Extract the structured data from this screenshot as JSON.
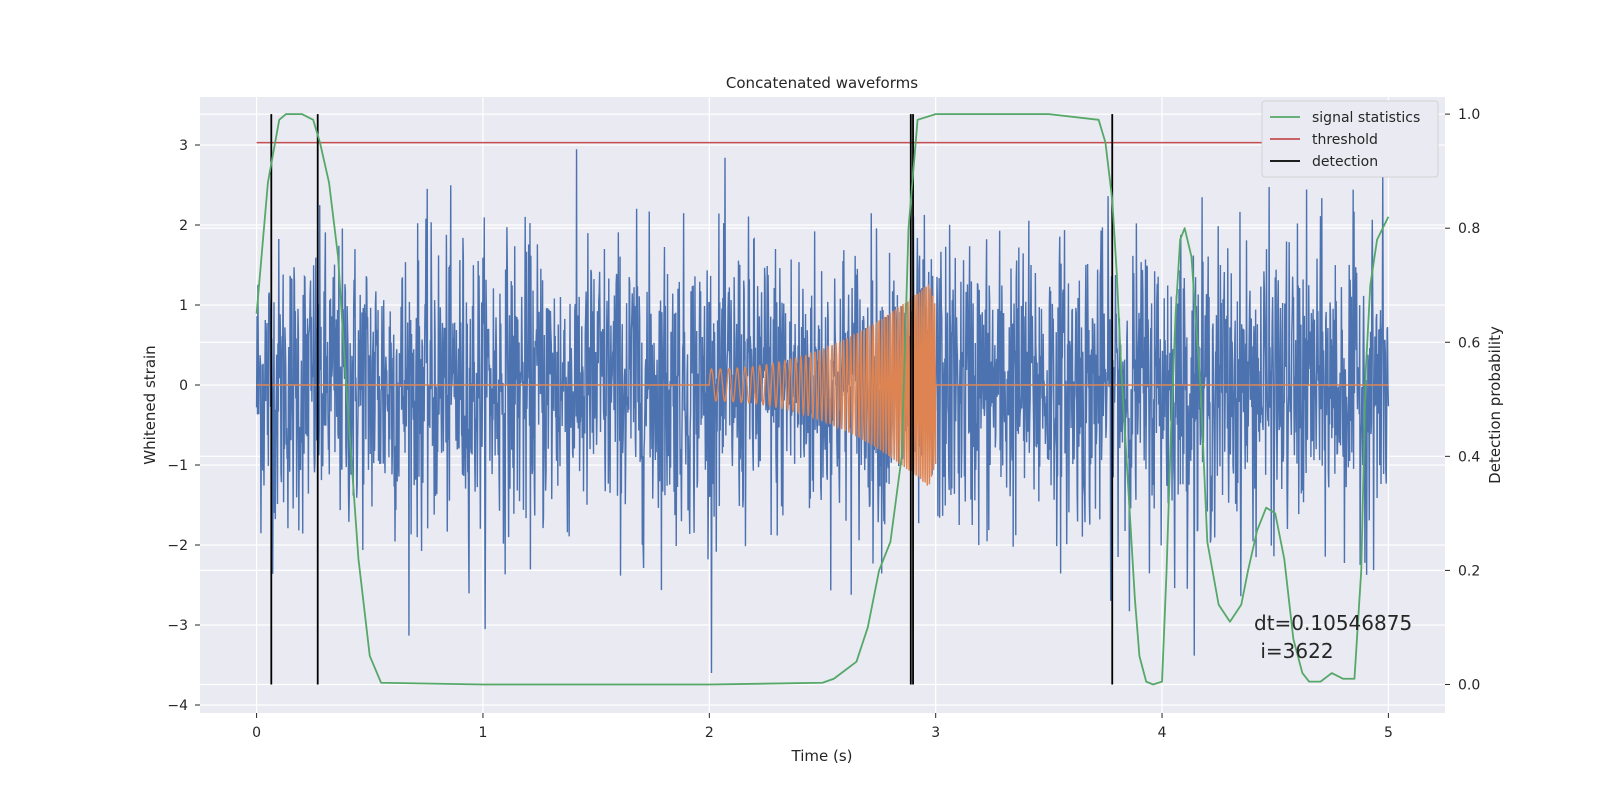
{
  "chart_data": {
    "type": "line",
    "title": "Concatenated waveforms",
    "xlabel": "Time (s)",
    "ylabel": "Whitened strain",
    "y2label": "Detection probability",
    "xlim": [
      -0.25,
      5.25
    ],
    "ylim": [
      -4.1,
      3.6
    ],
    "y2lim": [
      -0.05,
      1.03
    ],
    "x_ticks": [
      0,
      1,
      2,
      3,
      4,
      5
    ],
    "y_ticks": [
      -4,
      -3,
      -2,
      -1,
      0,
      1,
      2,
      3
    ],
    "y2_ticks": [
      0.0,
      0.2,
      0.4,
      0.6,
      0.8,
      1.0
    ],
    "x_tick_labels": [
      "0",
      "1",
      "2",
      "3",
      "4",
      "5"
    ],
    "y_tick_labels": [
      "−4",
      "−3",
      "−2",
      "−1",
      "0",
      "1",
      "2",
      "3"
    ],
    "y2_tick_labels": [
      "0.0",
      "0.2",
      "0.4",
      "0.6",
      "0.8",
      "1.0"
    ],
    "grid": true,
    "legend_position": "top-right",
    "background_color": "#eaeaf2",
    "series": [
      {
        "name": "",
        "axis": "left",
        "color": "#4c72b0",
        "description_values": "whitened noisy strain, roughly in [-3.6, 3.3]",
        "x_range": [
          0,
          5
        ]
      },
      {
        "name": "",
        "axis": "left",
        "color": "#dd8452",
        "chirp": {
          "start": 2.0,
          "end": 3.0,
          "amp_start": 0.2,
          "amp_end": 1.35,
          "f_start": 25,
          "f_end": 110
        }
      },
      {
        "name": "signal statistics",
        "axis": "right",
        "color": "#55a868",
        "x": [
          0.0,
          0.05,
          0.1,
          0.13,
          0.2,
          0.25,
          0.28,
          0.32,
          0.36,
          0.4,
          0.45,
          0.5,
          0.55,
          1.0,
          2.0,
          2.5,
          2.55,
          2.6,
          2.65,
          2.7,
          2.75,
          2.8,
          2.85,
          2.88,
          2.92,
          3.0,
          3.5,
          3.72,
          3.75,
          3.78,
          3.8,
          3.82,
          3.85,
          3.88,
          3.9,
          3.93,
          3.96,
          4.0,
          4.02,
          4.04,
          4.06,
          4.08,
          4.1,
          4.13,
          4.17,
          4.2,
          4.25,
          4.3,
          4.35,
          4.38,
          4.42,
          4.46,
          4.5,
          4.54,
          4.58,
          4.62,
          4.65,
          4.7,
          4.75,
          4.8,
          4.85,
          4.88,
          4.9,
          4.92,
          4.95,
          5.0
        ],
        "values": [
          0.65,
          0.88,
          0.99,
          1.0,
          1.0,
          0.99,
          0.95,
          0.88,
          0.75,
          0.5,
          0.22,
          0.05,
          0.003,
          0.0,
          0.0,
          0.003,
          0.01,
          0.025,
          0.04,
          0.1,
          0.2,
          0.25,
          0.4,
          0.8,
          0.99,
          1.0,
          1.0,
          0.99,
          0.95,
          0.85,
          0.72,
          0.55,
          0.35,
          0.15,
          0.05,
          0.005,
          0.0,
          0.005,
          0.2,
          0.45,
          0.65,
          0.78,
          0.8,
          0.75,
          0.52,
          0.25,
          0.14,
          0.11,
          0.14,
          0.2,
          0.27,
          0.31,
          0.3,
          0.22,
          0.08,
          0.02,
          0.005,
          0.005,
          0.02,
          0.01,
          0.01,
          0.2,
          0.55,
          0.7,
          0.78,
          0.82
        ]
      },
      {
        "name": "threshold",
        "axis": "right",
        "color": "#c44e52",
        "x": [
          0.0,
          5.0
        ],
        "values": [
          0.95,
          0.95
        ]
      },
      {
        "name": "detection",
        "axis": "right",
        "color": "#000000",
        "type": "vlines",
        "x": [
          0.065,
          0.27,
          2.89,
          2.9,
          3.78
        ]
      }
    ],
    "legend": [
      "signal statistics",
      "threshold",
      "detection"
    ],
    "annotations": [
      "dt=0.10546875",
      " i=3622"
    ]
  }
}
